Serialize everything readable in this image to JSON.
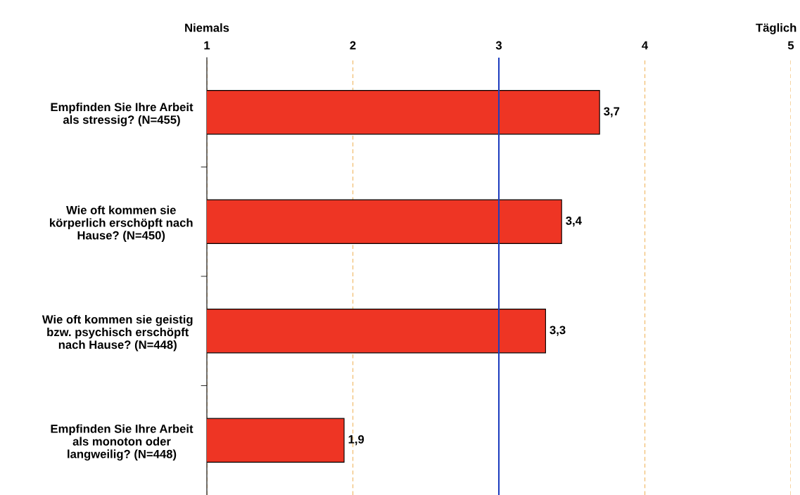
{
  "chart_data": {
    "type": "bar",
    "orientation": "horizontal",
    "categories": [
      "Empfinden Sie Ihre Arbeit\nals stressig? (N=455)",
      "Wie oft kommen sie\nkörperlich erschöpft nach\nHause? (N=450)",
      "Wie oft kommen sie geistig\nbzw. psychisch erschöpft\nnach Hause? (N=448)",
      "Empfinden Sie Ihre Arbeit\nals monoton oder\nlangweilig? (N=448)"
    ],
    "values": [
      3.69,
      3.43,
      3.32,
      1.94
    ],
    "value_labels": [
      "3,7",
      "3,4",
      "3,3",
      "1,9"
    ],
    "color": "#ee3524",
    "xlim": [
      1,
      5
    ],
    "xticks": [
      1,
      2,
      3,
      4,
      5
    ],
    "grid": "x",
    "ref_lines": [
      {
        "axis": "x",
        "value": 3,
        "color": "#1f3fbf"
      }
    ],
    "annotations": [
      "Niemals",
      "Täglich"
    ]
  }
}
